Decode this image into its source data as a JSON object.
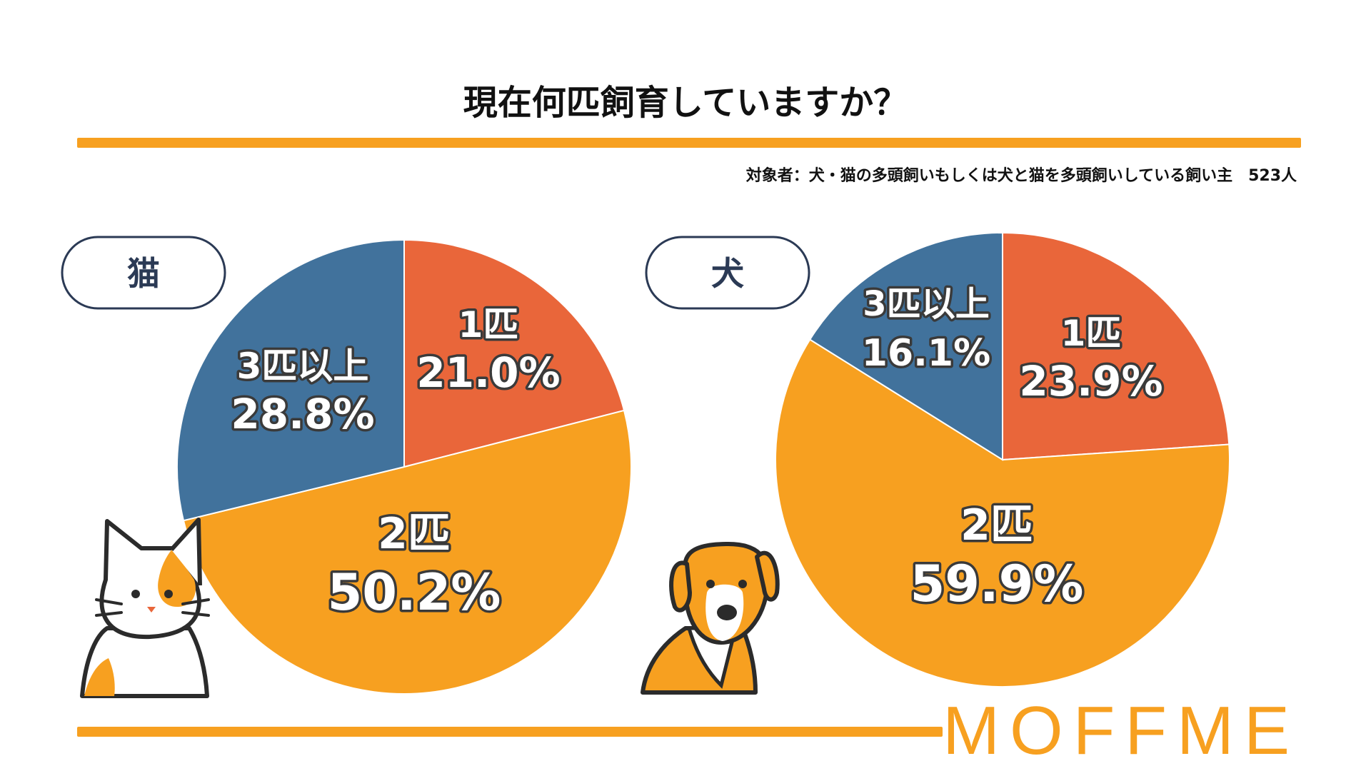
{
  "colors": {
    "accent": "#f7a020",
    "one": "#e9663a",
    "two": "#f7a020",
    "three": "#41729c",
    "pill_border": "#2b3a55"
  },
  "title": "現在何匹飼育していますか？",
  "subtitle": "対象者：犬・猫の多頭飼いもしくは犬と猫を多頭飼いしている飼い主　523人",
  "brand": "MOFFME",
  "chart_data": [
    {
      "type": "pie",
      "title": "猫",
      "labels": [
        "1匹",
        "2匹",
        "3匹以上"
      ],
      "values": [
        21.0,
        50.2,
        28.8
      ],
      "display": [
        [
          "1匹",
          "21.0%"
        ],
        [
          "2匹",
          "50.2%"
        ],
        [
          "3匹以上",
          "28.8%"
        ]
      ]
    },
    {
      "type": "pie",
      "title": "犬",
      "labels": [
        "1匹",
        "2匹",
        "3匹以上"
      ],
      "values": [
        23.9,
        59.9,
        16.1
      ],
      "display": [
        [
          "1匹",
          "23.9%"
        ],
        [
          "2匹",
          "59.9%"
        ],
        [
          "3匹以上",
          "16.1%"
        ]
      ]
    }
  ]
}
